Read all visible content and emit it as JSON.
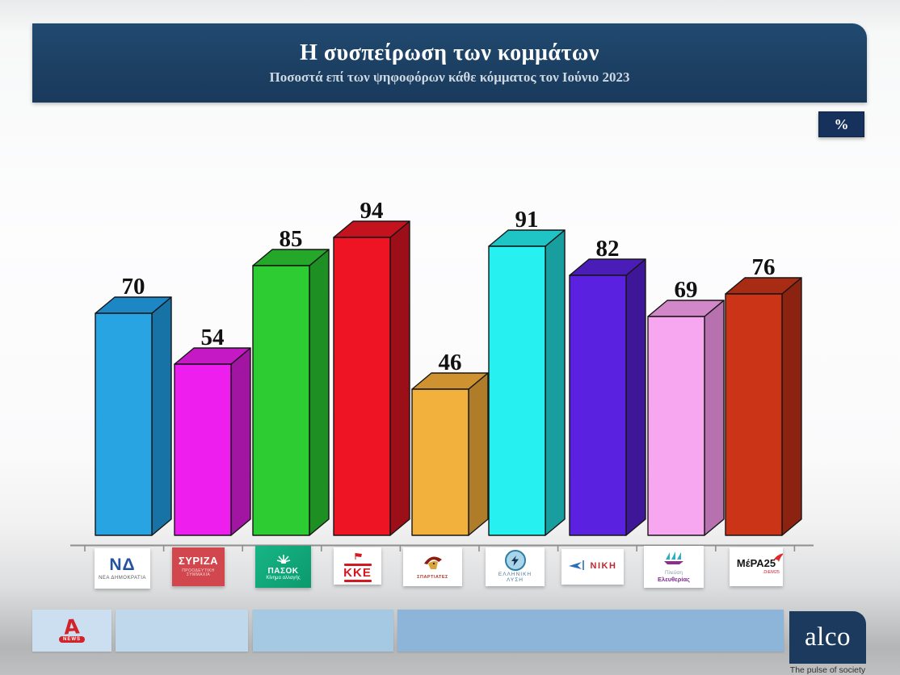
{
  "header": {
    "title": "Η συσπείρωση των κομμάτων",
    "subtitle": "Ποσοστά επί των ψηφοφόρων κάθε κόμματος τον Ιούνιο 2023",
    "unit_badge": "%"
  },
  "chart_data": {
    "type": "bar",
    "title": "Η συσπείρωση των κομμάτων",
    "subtitle": "Ποσοστά επί των ψηφοφόρων κάθε κόμματος τον Ιούνιο 2023",
    "unit": "%",
    "ylim": [
      0,
      100
    ],
    "legend": "none",
    "y_axis_visible": false,
    "style": "3d-columns",
    "categories": [
      "ΝΕΑ ΔΗΜΟΚΡΑΤΙΑ",
      "ΣΥΡΙΖΑ",
      "ΠΑΣΟΚ",
      "ΚΚΕ",
      "ΣΠΑΡΤΙΑΤΕΣ",
      "ΕΛΛΗΝΙΚΗ ΛΥΣΗ",
      "ΝΙΚΗ",
      "ΠΛΕΥΣΗ ΕΛΕΥΘΕΡΙΑΣ",
      "ΜέΡΑ25"
    ],
    "values": [
      70,
      54,
      85,
      94,
      46,
      91,
      82,
      69,
      76
    ],
    "bars": [
      {
        "party": "ΝΕΑ ΔΗΜΟΚΡΑΤΙΑ",
        "value": 70,
        "front": "#29a4e2",
        "top": "#1d86c4",
        "side": "#1773a6"
      },
      {
        "party": "ΣΥΡΙΖΑ",
        "value": 54,
        "front": "#ee1fee",
        "top": "#c419c4",
        "side": "#a215a2"
      },
      {
        "party": "ΠΑΣΟΚ",
        "value": 85,
        "front": "#2ecc33",
        "top": "#25a829",
        "side": "#1e8f22"
      },
      {
        "party": "ΚΚΕ",
        "value": 94,
        "front": "#ee1424",
        "top": "#c4121e",
        "side": "#9c0e18"
      },
      {
        "party": "ΣΠΑΡΤΙΑΤΕΣ",
        "value": 46,
        "front": "#f2b13d",
        "top": "#ce9230",
        "side": "#af7c29"
      },
      {
        "party": "ΕΛΛΗΝΙΚΗ ΛΥΣΗ",
        "value": 91,
        "front": "#27f0f0",
        "top": "#1fc4c4",
        "side": "#189e9e"
      },
      {
        "party": "ΝΙΚΗ",
        "value": 82,
        "front": "#5a22e0",
        "top": "#4a1cb8",
        "side": "#3d1798"
      },
      {
        "party": "ΠΛΕΥΣΗ ΕΛΕΥΘΕΡΙΑΣ",
        "value": 69,
        "front": "#f7a7f0",
        "top": "#d287c8",
        "side": "#b671ae"
      },
      {
        "party": "ΜέΡΑ25",
        "value": 76,
        "front": "#cc3418",
        "top": "#a82b14",
        "side": "#8c2310"
      }
    ]
  },
  "logos": [
    {
      "mark": "ΝΔ",
      "label": "ΝΕΑ ΔΗΜΟΚΡΑΤΙΑ"
    },
    {
      "mark": "ΣΥΡΙΖΑ",
      "sub": "ΠΡΟΟΔΕΥΤΙΚΗ ΣΥΜΜΑΧΙΑ"
    },
    {
      "mark": "ΠΑΣΟΚ",
      "sub": "Κίνημα αλλαγής"
    },
    {
      "mark": "ΚΚΕ"
    },
    {
      "label": "ΣΠΑΡΤΙΑΤΕΣ"
    },
    {
      "line1": "ΕΛΛΗΝΙΚΗ",
      "line2": "ΛΥΣΗ"
    },
    {
      "mark": "ΝΙΚΗ"
    },
    {
      "line1": "Πλεύση",
      "line2": "Ελευθερίας"
    },
    {
      "mark": "ΜέΡΑ25",
      "sub": ".DiEM25"
    }
  ],
  "footer": {
    "alpha_news": {
      "letter": "A",
      "news": "NEWS"
    },
    "alco": {
      "brand": "alco",
      "tagline": "The pulse of society"
    }
  },
  "colors": {
    "header_navy": "#1c4063",
    "badge_navy": "#16325c",
    "axis_gray": "#8e8e8e",
    "alpha_red": "#d2232a",
    "alco_navy": "#1b3a5e"
  }
}
